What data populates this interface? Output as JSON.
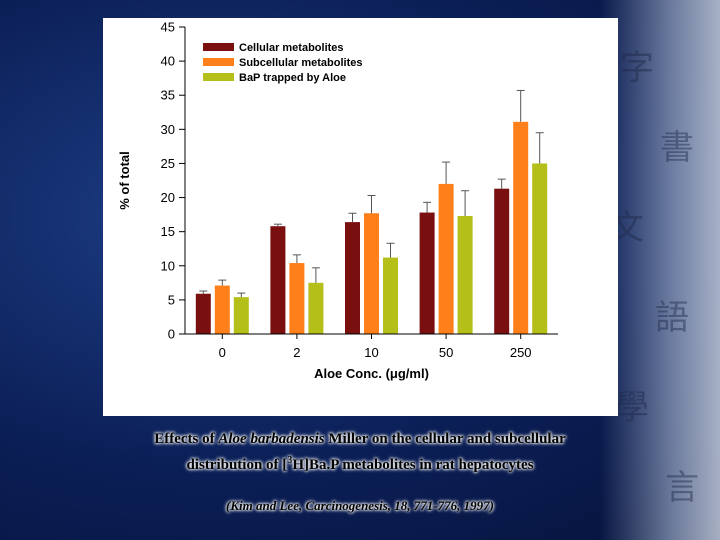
{
  "chart_data": {
    "type": "bar",
    "categories": [
      "0",
      "2",
      "10",
      "50",
      "250"
    ],
    "series": [
      {
        "name": "Cellular metabolites",
        "color": "#7a0f0f",
        "values": [
          5.9,
          15.8,
          16.4,
          17.8,
          21.3
        ],
        "errors": [
          0.4,
          0.3,
          1.3,
          1.5,
          1.4
        ]
      },
      {
        "name": "Subcellular metabolites",
        "color": "#ff7f1a",
        "values": [
          7.1,
          10.4,
          17.7,
          22.0,
          31.1
        ],
        "errors": [
          0.8,
          1.2,
          2.6,
          3.2,
          4.6
        ]
      },
      {
        "name": "BaP trapped by Aloe",
        "color": "#b5bf1a",
        "values": [
          5.4,
          7.5,
          11.2,
          17.3,
          25.0
        ],
        "errors": [
          0.6,
          2.2,
          2.1,
          3.7,
          4.5
        ]
      }
    ],
    "ylim": [
      0,
      45
    ],
    "yticks": [
      "0",
      "5",
      "10",
      "15",
      "20",
      "25",
      "30",
      "35",
      "40",
      "45"
    ],
    "xlabel": "Aloe Conc. (μg/ml)",
    "ylabel": "% of total",
    "legend_position": "top-left"
  },
  "caption": {
    "line1_prefix": "Effects of ",
    "line1_species": "Aloe barbadensis",
    "line1_suffix": " Miller on the cellular and subcellular",
    "line2_prefix": "distribution of [",
    "line2_sup": "3",
    "line2_suffix": "H]Ba.P metabolites in rat hepatocytes"
  },
  "citation": "(Kim and Lee, Carcinogenesis, 18, 771-776, 1997)"
}
